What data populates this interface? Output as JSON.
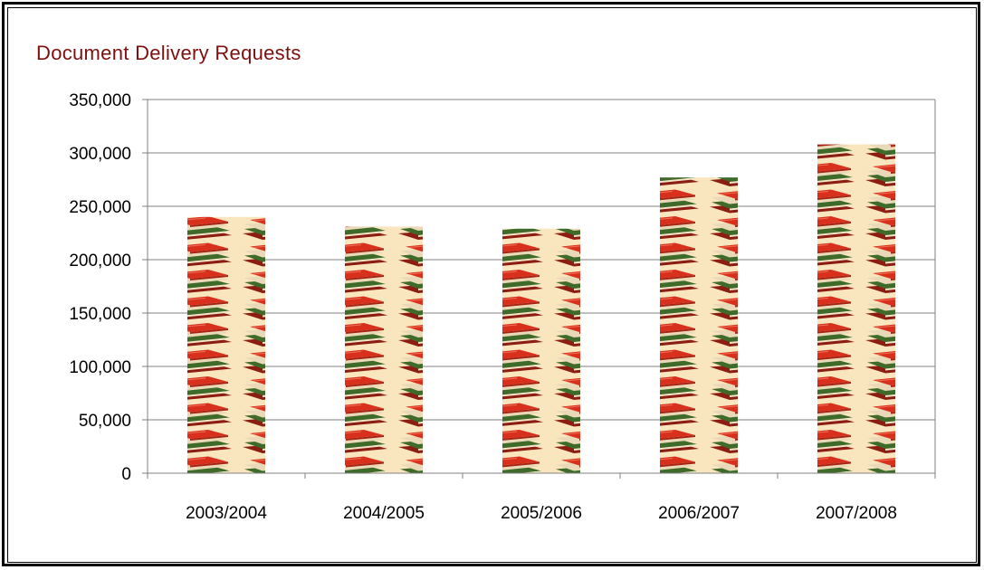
{
  "chart_data": {
    "type": "bar",
    "title": "Document Delivery Requests",
    "xlabel": "",
    "ylabel": "",
    "categories": [
      "2003/2004",
      "2004/2005",
      "2005/2006",
      "2006/2007",
      "2007/2008"
    ],
    "values": [
      240000,
      231000,
      229000,
      277000,
      308000
    ],
    "ylim": [
      0,
      350000
    ],
    "yticks": [
      0,
      50000,
      100000,
      150000,
      200000,
      250000,
      300000,
      350000
    ],
    "ytick_labels": [
      "0",
      "50,000",
      "100,000",
      "150,000",
      "200,000",
      "250,000",
      "300,000",
      "350,000"
    ],
    "grid": true,
    "legend": "none",
    "bar_fill": "stacked-books-image"
  },
  "colors": {
    "title": "#7f0f0f",
    "gridline": "#808080",
    "axis": "#808080",
    "book_red": "#d8301c",
    "book_green": "#3f6b2a",
    "book_page": "#f3e6c9",
    "book_bg": "#f6d9a4"
  }
}
